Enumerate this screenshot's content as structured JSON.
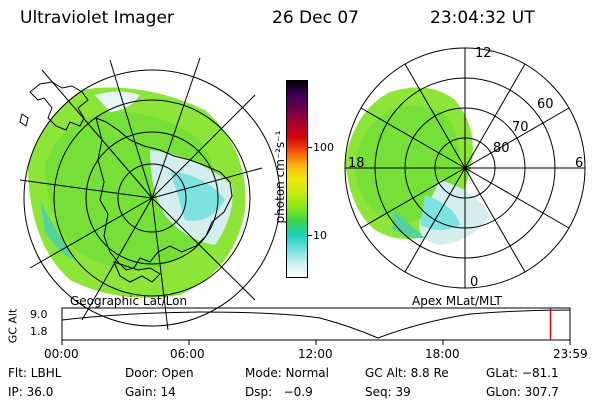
{
  "header": {
    "title": "Ultraviolet Imager",
    "date": "26 Dec 07",
    "time": "23:04:32 UT"
  },
  "left_panel": {
    "caption": "Geographic Lat/Lon"
  },
  "right_panel": {
    "caption": "Apex MLat/MLT",
    "lat_labels": [
      "80",
      "70",
      "60"
    ],
    "mlt_labels": [
      "12",
      "18",
      "6",
      "0"
    ]
  },
  "colorbar": {
    "label": "photon cm⁻²s⁻¹",
    "scale": "log",
    "tick_labels": [
      "100",
      "10"
    ],
    "colors": [
      "#000000",
      "#3a0058",
      "#6a004a",
      "#a8002a",
      "#d60010",
      "#f4500a",
      "#f8b40c",
      "#f0e60a",
      "#c6ec10",
      "#88e81a",
      "#3ad64a",
      "#1ccfc0",
      "#6ee2e0",
      "#cdeeee",
      "#ffffff"
    ]
  },
  "altitude_plot": {
    "ylabel": "GC Alt",
    "ytick_labels": [
      "9.0",
      "1.8"
    ],
    "xtick_labels": [
      "00:00",
      "06:00",
      "12:00",
      "18:00",
      "23:59"
    ],
    "marker_color": "#d00000",
    "current_time_hours": 23.08
  },
  "status": {
    "row1": {
      "filter": "Flt: LBHL",
      "door": "Door: Open",
      "mode": "Mode: Normal",
      "gc_alt": "GC Alt: 8.8 Re",
      "glat": "GLat: −81.1"
    },
    "row2": {
      "ip": "IP: 36.0",
      "gain": "Gain: 14",
      "dsp": "Dsp:   −0.9",
      "seq": "Seq: 39",
      "glon": "GLon: 307.7"
    }
  }
}
